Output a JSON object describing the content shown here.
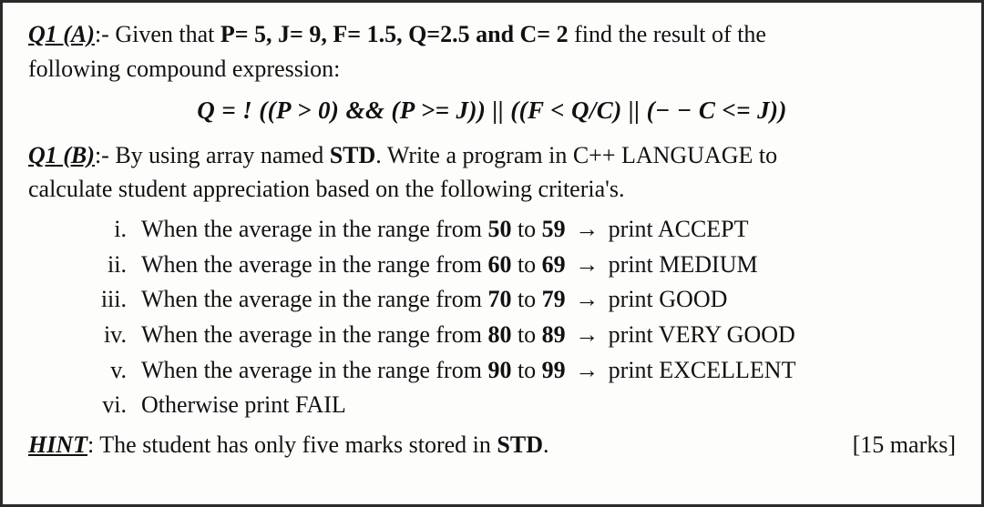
{
  "q1a": {
    "label": "Q1 (A)",
    "sep": ":- ",
    "lead": "Given that ",
    "given": "P= 5, J= 9, F= 1.5, Q=2.5 and C= 2",
    "tail1": " find the result of the",
    "tail2": "following compound expression:"
  },
  "expression": "Q  = !  ((P > 0) && (P >= J)) || ((F <  Q/C) || (− − C <=  J))",
  "q1b": {
    "label": "Q1 (B)",
    "sep": ":- ",
    "lead": "By using array named ",
    "arr": "STD",
    "tail1": ". Write a program in C++ LANGUAGE to",
    "tail2": "calculate student appreciation based on the following criteria's."
  },
  "criteria": [
    {
      "rn": "i.",
      "pre": "When the average in the range from ",
      "lo": "50",
      "mid": " to ",
      "hi": "59",
      "arrow": " → ",
      "post": "print ACCEPT"
    },
    {
      "rn": "ii.",
      "pre": "When the average in the range from ",
      "lo": "60",
      "mid": " to ",
      "hi": "69",
      "arrow": " → ",
      "post": "print MEDIUM"
    },
    {
      "rn": "iii.",
      "pre": "When the average in the range from ",
      "lo": "70",
      "mid": " to ",
      "hi": "79",
      "arrow": " → ",
      "post": "print GOOD"
    },
    {
      "rn": "iv.",
      "pre": "When the average in the range from ",
      "lo": "80",
      "mid": " to ",
      "hi": "89",
      "arrow": " → ",
      "post": "print VERY GOOD"
    },
    {
      "rn": "v.",
      "pre": "When the average in the range from ",
      "lo": "90",
      "mid": " to ",
      "hi": "99",
      "arrow": " → ",
      "post": "print EXCELLENT"
    },
    {
      "rn": "vi.",
      "pre": "Otherwise print FAIL",
      "lo": "",
      "mid": "",
      "hi": "",
      "arrow": "",
      "post": ""
    }
  ],
  "hint": {
    "label": "HINT",
    "sep": ": ",
    "text1": "The student has only five marks stored in ",
    "arr": "STD",
    "text2": ".",
    "marks": "[15 marks]"
  }
}
